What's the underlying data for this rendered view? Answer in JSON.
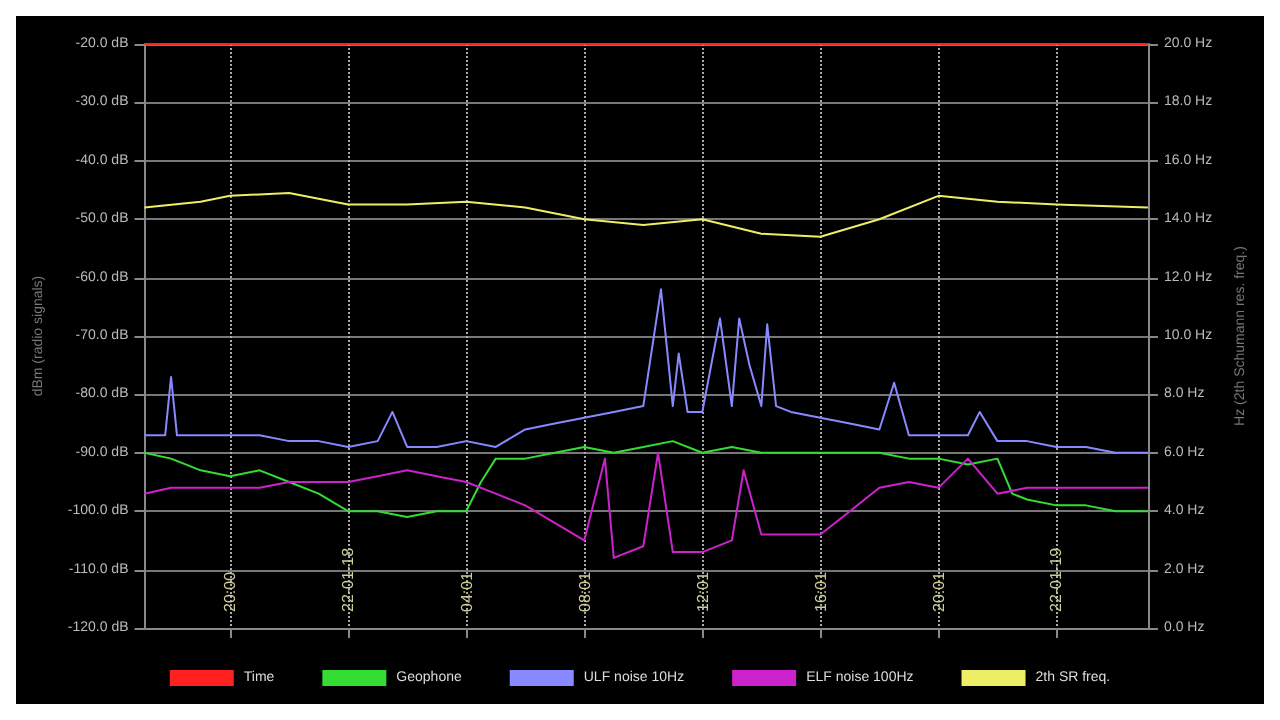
{
  "chart_data": {
    "type": "line",
    "ylabel": "dBm (radio signals)",
    "y2label": "Hz (2th Schumann res. freq.)",
    "xlim": [
      "--01-17T17:06",
      "--01-19T03:06"
    ],
    "xticks": [
      {
        "value": "--01-17T20:00",
        "label": "20:00"
      },
      {
        "value": "--01-18T00:00",
        "label": "22-01-18"
      },
      {
        "value": "--01-18T04:01",
        "label": "04:01"
      },
      {
        "value": "--01-18T08:01",
        "label": "08:01"
      },
      {
        "value": "--01-18T12:01",
        "label": "12:01"
      },
      {
        "value": "--01-18T16:01",
        "label": "16:01"
      },
      {
        "value": "--01-18T20:01",
        "label": "20:01"
      },
      {
        "value": "--01-19T00:00",
        "label": "22-01-19"
      }
    ],
    "ylim": [
      -120,
      -20
    ],
    "yticks": [
      {
        "value": -120,
        "label": "-120.0 dB"
      },
      {
        "value": -110,
        "label": "-110.0 dB"
      },
      {
        "value": -100,
        "label": "-100.0 dB"
      },
      {
        "value": -90,
        "label": "-90.0 dB"
      },
      {
        "value": -80,
        "label": "-80.0 dB"
      },
      {
        "value": -70,
        "label": "-70.0 dB"
      },
      {
        "value": -60,
        "label": "-60.0 dB"
      },
      {
        "value": -50,
        "label": "-50.0 dB"
      },
      {
        "value": -40,
        "label": "-40.0 dB"
      },
      {
        "value": -30,
        "label": "-30.0 dB"
      },
      {
        "value": -20,
        "label": "-20.0 dB"
      }
    ],
    "y2lim": [
      0,
      20
    ],
    "y2ticks": [
      {
        "value": 0,
        "label": "0.0 Hz"
      },
      {
        "value": 2,
        "label": "2.0 Hz"
      },
      {
        "value": 4,
        "label": "4.0 Hz"
      },
      {
        "value": 6,
        "label": "6.0 Hz"
      },
      {
        "value": 8,
        "label": "8.0 Hz"
      },
      {
        "value": 10,
        "label": "10.0 Hz"
      },
      {
        "value": 12,
        "label": "12.0 Hz"
      },
      {
        "value": 14,
        "label": "14.0 Hz"
      },
      {
        "value": 16,
        "label": "16.0 Hz"
      },
      {
        "value": 18,
        "label": "18.0 Hz"
      },
      {
        "value": 20,
        "label": "20.0 Hz"
      }
    ],
    "grid": true,
    "legend": "bottom",
    "marker": "none",
    "line_style": "solid",
    "series": [
      {
        "name": "Time",
        "color": "#ff2020",
        "x": [
          "--01-17T17:06",
          "--01-19T03:06"
        ],
        "values": [
          -20,
          -20
        ]
      },
      {
        "name": "Geophone",
        "color": "#33dd33",
        "x": [
          "--01-17T17:06",
          "--01-17T18:00",
          "--01-17T19:00",
          "--01-17T20:00",
          "--01-17T21:00",
          "--01-17T22:00",
          "--01-17T23:00",
          "--01-18T00:00",
          "--01-18T01:00",
          "--01-18T02:00",
          "--01-18T03:00",
          "--01-18T04:00",
          "--01-18T04:30",
          "--01-18T05:00",
          "--01-18T06:00",
          "--01-18T07:00",
          "--01-18T08:00",
          "--01-18T09:00",
          "--01-18T10:00",
          "--01-18T11:00",
          "--01-18T12:00",
          "--01-18T13:00",
          "--01-18T14:00",
          "--01-18T15:00",
          "--01-18T16:00",
          "--01-18T17:00",
          "--01-18T18:00",
          "--01-18T19:00",
          "--01-18T20:00",
          "--01-18T21:00",
          "--01-18T22:00",
          "--01-18T22:30",
          "--01-18T23:00",
          "--01-19T00:00",
          "--01-19T01:00",
          "--01-19T02:00",
          "--01-19T03:06"
        ],
        "values": [
          -90,
          -91,
          -93,
          -94,
          -93,
          -95,
          -97,
          -100,
          -100,
          -101,
          -100,
          -100,
          -95,
          -91,
          -91,
          -90,
          -89,
          -90,
          -89,
          -88,
          -90,
          -89,
          -90,
          -90,
          -90,
          -90,
          -90,
          -91,
          -91,
          -92,
          -91,
          -97,
          -98,
          -99,
          -99,
          -100,
          -100
        ]
      },
      {
        "name": "ULF noise 10Hz",
        "color": "#8888ff",
        "x": [
          "--01-17T17:06",
          "--01-17T17:48",
          "--01-17T18:00",
          "--01-17T18:12",
          "--01-17T19:00",
          "--01-17T20:00",
          "--01-17T21:00",
          "--01-17T22:00",
          "--01-17T23:00",
          "--01-18T00:00",
          "--01-18T01:00",
          "--01-18T01:30",
          "--01-18T02:00",
          "--01-18T03:00",
          "--01-18T04:00",
          "--01-18T05:00",
          "--01-18T06:00",
          "--01-18T07:00",
          "--01-18T08:00",
          "--01-18T09:00",
          "--01-18T10:00",
          "--01-18T10:36",
          "--01-18T11:00",
          "--01-18T11:12",
          "--01-18T11:30",
          "--01-18T12:00",
          "--01-18T12:18",
          "--01-18T12:36",
          "--01-18T13:00",
          "--01-18T13:15",
          "--01-18T13:36",
          "--01-18T14:00",
          "--01-18T14:12",
          "--01-18T14:30",
          "--01-18T15:00",
          "--01-18T16:00",
          "--01-18T17:00",
          "--01-18T18:00",
          "--01-18T18:30",
          "--01-18T19:00",
          "--01-18T20:00",
          "--01-18T21:00",
          "--01-18T21:24",
          "--01-18T22:00",
          "--01-18T23:00",
          "--01-19T00:00",
          "--01-19T01:00",
          "--01-19T02:00",
          "--01-19T03:06"
        ],
        "values": [
          -87,
          -87,
          -77,
          -87,
          -87,
          -87,
          -87,
          -88,
          -88,
          -89,
          -88,
          -83,
          -89,
          -89,
          -88,
          -89,
          -86,
          -85,
          -84,
          -83,
          -82,
          -62,
          -82,
          -73,
          -83,
          -83,
          -75,
          -67,
          -82,
          -67,
          -75,
          -82,
          -68,
          -82,
          -83,
          -84,
          -85,
          -86,
          -78,
          -87,
          -87,
          -87,
          -83,
          -88,
          -88,
          -89,
          -89,
          -90,
          -90
        ]
      },
      {
        "name": "ELF noise 100Hz",
        "color": "#cc22cc",
        "x": [
          "--01-17T17:06",
          "--01-17T18:00",
          "--01-17T19:00",
          "--01-17T20:00",
          "--01-17T21:00",
          "--01-17T22:00",
          "--01-17T23:00",
          "--01-18T00:00",
          "--01-18T01:00",
          "--01-18T02:00",
          "--01-18T03:00",
          "--01-18T04:00",
          "--01-18T05:00",
          "--01-18T06:00",
          "--01-18T07:00",
          "--01-18T08:00",
          "--01-18T08:42",
          "--01-18T09:00",
          "--01-18T10:00",
          "--01-18T10:30",
          "--01-18T11:00",
          "--01-18T12:00",
          "--01-18T13:00",
          "--01-18T13:24",
          "--01-18T14:00",
          "--01-18T15:00",
          "--01-18T16:00",
          "--01-18T17:00",
          "--01-18T18:00",
          "--01-18T19:00",
          "--01-18T20:00",
          "--01-18T21:00",
          "--01-18T22:00",
          "--01-18T23:00",
          "--01-19T00:00",
          "--01-19T01:00",
          "--01-19T02:00",
          "--01-19T03:06"
        ],
        "values": [
          -97,
          -96,
          -96,
          -96,
          -96,
          -95,
          -95,
          -95,
          -94,
          -93,
          -94,
          -95,
          -97,
          -99,
          -102,
          -105,
          -91,
          -108,
          -106,
          -90,
          -107,
          -107,
          -105,
          -93,
          -104,
          -104,
          -104,
          -100,
          -96,
          -95,
          -96,
          -91,
          -97,
          -96,
          -96,
          -96,
          -96,
          -96
        ]
      },
      {
        "name": "2th SR freq.",
        "color": "#eeee66",
        "axis": "y2",
        "x": [
          "--01-17T17:06",
          "--01-17T19:00",
          "--01-17T20:00",
          "--01-17T22:00",
          "--01-18T00:00",
          "--01-18T02:00",
          "--01-18T04:00",
          "--01-18T06:00",
          "--01-18T08:00",
          "--01-18T10:00",
          "--01-18T12:00",
          "--01-18T14:00",
          "--01-18T16:00",
          "--01-18T18:00",
          "--01-18T20:00",
          "--01-18T22:00",
          "--01-19T00:00",
          "--01-19T03:06"
        ],
        "values": [
          14.4,
          14.6,
          14.8,
          14.9,
          14.5,
          14.5,
          14.6,
          14.4,
          14.0,
          13.8,
          14.0,
          13.5,
          13.4,
          14.0,
          14.8,
          14.6,
          14.5,
          14.4
        ]
      }
    ]
  }
}
